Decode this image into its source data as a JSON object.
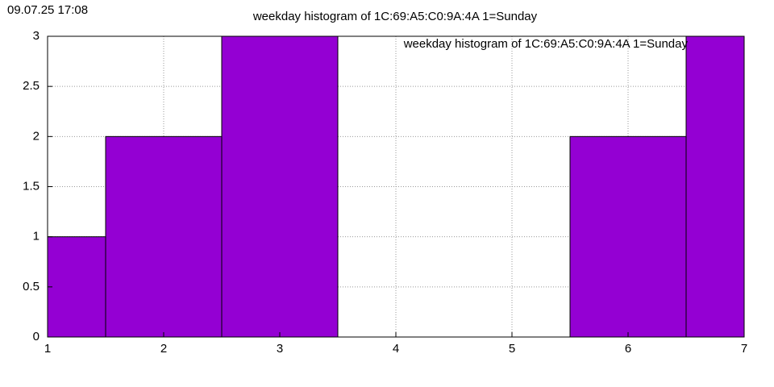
{
  "timestamp": "09.07.25 17:08",
  "chart_data": {
    "type": "histogram",
    "title": "weekday histogram of 1C:69:A5:C0:9A:4A 1=Sunday",
    "bins": [
      0.5,
      1.5,
      2.5,
      3.5,
      4.5,
      5.5,
      6.5,
      7.5
    ],
    "series": [
      {
        "name": "weekday histogram of 1C:69:A5:C0:9A:4A 1=Sunday",
        "color": "#9400d3",
        "values": [
          1,
          2,
          3,
          0,
          0,
          2,
          3
        ]
      }
    ],
    "xlim": [
      1,
      7
    ],
    "xticks": [
      1,
      2,
      3,
      4,
      5,
      6,
      7
    ],
    "ylim": [
      0,
      3
    ],
    "yticks": [
      0,
      0.5,
      1,
      1.5,
      2,
      2.5,
      3
    ],
    "grid": true,
    "legend": "top-right"
  }
}
